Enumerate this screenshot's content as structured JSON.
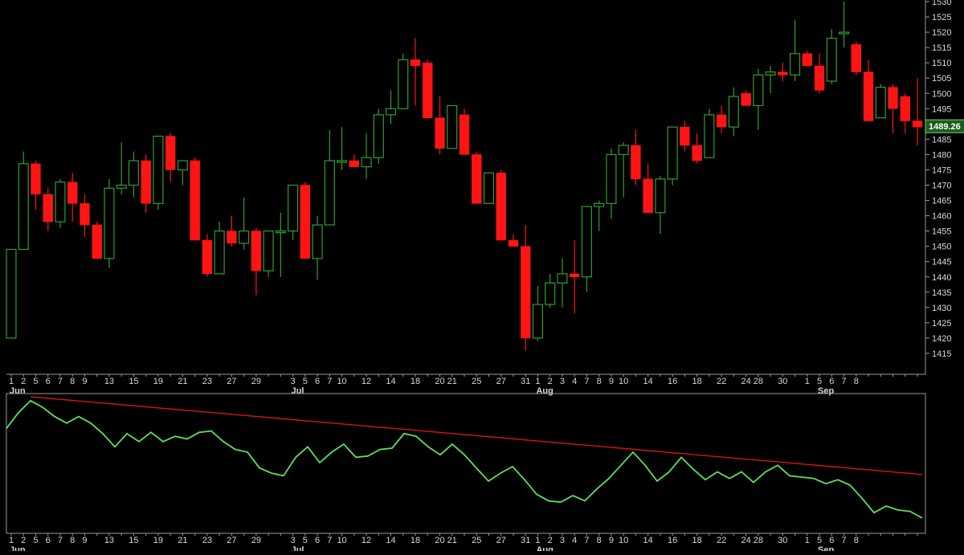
{
  "colors": {
    "background": "#000000",
    "up": "#2f9e2f",
    "down": "#ff1414",
    "frame": "#9a9a9a",
    "text": "#d8d8d8",
    "price_tag_bg": "#1e5a1e",
    "oscillator": "#5de05d",
    "trendline": "#d01818"
  },
  "chart_data": [
    {
      "type": "candlestick",
      "panel": "price",
      "grid": false,
      "ylim": [
        1410,
        1530
      ],
      "y_ticks": [
        1415,
        1420,
        1425,
        1430,
        1435,
        1440,
        1445,
        1450,
        1455,
        1460,
        1465,
        1470,
        1475,
        1480,
        1485,
        1490,
        1495,
        1500,
        1505,
        1510,
        1515,
        1520,
        1525,
        1530
      ],
      "current_price_label": "1489.26",
      "current_price": 1489.26,
      "x_tick_labels": [
        "1",
        "2",
        "5",
        "6",
        "7",
        "8",
        "9",
        "13",
        "15",
        "19",
        "21",
        "23",
        "27",
        "29",
        "3",
        "5",
        "6",
        "7",
        "10",
        "12",
        "14",
        "18",
        "20",
        "21",
        "25",
        "27",
        "31",
        "1",
        "2",
        "3",
        "4",
        "7",
        "8",
        "9",
        "10",
        "14",
        "16",
        "18",
        "22",
        "24",
        "28",
        "30",
        "1",
        "5",
        "6",
        "7",
        "8"
      ],
      "month_labels": [
        "Jun",
        "Jul",
        "Aug",
        "Sep"
      ],
      "candles": [
        {
          "o": 1420,
          "h": 1449,
          "l": 1420,
          "c": 1449
        },
        {
          "o": 1449,
          "h": 1481,
          "l": 1449,
          "c": 1477
        },
        {
          "o": 1477,
          "h": 1478,
          "l": 1462,
          "c": 1467
        },
        {
          "o": 1467,
          "h": 1469,
          "l": 1455,
          "c": 1458
        },
        {
          "o": 1458,
          "h": 1472,
          "l": 1456,
          "c": 1471
        },
        {
          "o": 1471,
          "h": 1474,
          "l": 1458,
          "c": 1464
        },
        {
          "o": 1464,
          "h": 1467,
          "l": 1453,
          "c": 1457
        },
        {
          "o": 1457,
          "h": 1458,
          "l": 1446,
          "c": 1446
        },
        {
          "o": 1446,
          "h": 1472,
          "l": 1443,
          "c": 1469
        },
        {
          "o": 1469,
          "h": 1484,
          "l": 1467,
          "c": 1470
        },
        {
          "o": 1470,
          "h": 1481,
          "l": 1466,
          "c": 1478
        },
        {
          "o": 1478,
          "h": 1480,
          "l": 1461,
          "c": 1464
        },
        {
          "o": 1464,
          "h": 1486,
          "l": 1462,
          "c": 1486
        },
        {
          "o": 1486,
          "h": 1487,
          "l": 1471,
          "c": 1475
        },
        {
          "o": 1475,
          "h": 1478,
          "l": 1470,
          "c": 1478
        },
        {
          "o": 1478,
          "h": 1479,
          "l": 1452,
          "c": 1452
        },
        {
          "o": 1452,
          "h": 1454,
          "l": 1440,
          "c": 1441
        },
        {
          "o": 1441,
          "h": 1458,
          "l": 1441,
          "c": 1455
        },
        {
          "o": 1455,
          "h": 1460,
          "l": 1450,
          "c": 1451
        },
        {
          "o": 1451,
          "h": 1466,
          "l": 1449,
          "c": 1455
        },
        {
          "o": 1455,
          "h": 1456,
          "l": 1434,
          "c": 1442
        },
        {
          "o": 1442,
          "h": 1455,
          "l": 1440,
          "c": 1455
        },
        {
          "o": 1455,
          "h": 1461,
          "l": 1440,
          "c": 1455
        },
        {
          "o": 1455,
          "h": 1470,
          "l": 1452,
          "c": 1470
        },
        {
          "o": 1470,
          "h": 1471,
          "l": 1446,
          "c": 1446
        },
        {
          "o": 1446,
          "h": 1460,
          "l": 1439,
          "c": 1457
        },
        {
          "o": 1457,
          "h": 1488,
          "l": 1457,
          "c": 1478
        },
        {
          "o": 1478,
          "h": 1489,
          "l": 1475,
          "c": 1478
        },
        {
          "o": 1478,
          "h": 1480,
          "l": 1476,
          "c": 1476
        },
        {
          "o": 1476,
          "h": 1487,
          "l": 1472,
          "c": 1479
        },
        {
          "o": 1479,
          "h": 1495,
          "l": 1477,
          "c": 1493
        },
        {
          "o": 1493,
          "h": 1501,
          "l": 1490,
          "c": 1495
        },
        {
          "o": 1495,
          "h": 1513,
          "l": 1495,
          "c": 1511
        },
        {
          "o": 1511,
          "h": 1518,
          "l": 1496,
          "c": 1509
        },
        {
          "o": 1510,
          "h": 1511,
          "l": 1492,
          "c": 1492
        },
        {
          "o": 1492,
          "h": 1499,
          "l": 1480,
          "c": 1482
        },
        {
          "o": 1482,
          "h": 1496,
          "l": 1482,
          "c": 1496
        },
        {
          "o": 1493,
          "h": 1495,
          "l": 1480,
          "c": 1480
        },
        {
          "o": 1480,
          "h": 1481,
          "l": 1464,
          "c": 1464
        },
        {
          "o": 1464,
          "h": 1474,
          "l": 1464,
          "c": 1474
        },
        {
          "o": 1474,
          "h": 1475,
          "l": 1452,
          "c": 1452
        },
        {
          "o": 1452,
          "h": 1454,
          "l": 1450,
          "c": 1450
        },
        {
          "o": 1450,
          "h": 1457,
          "l": 1416,
          "c": 1420
        },
        {
          "o": 1420,
          "h": 1437,
          "l": 1419,
          "c": 1431
        },
        {
          "o": 1431,
          "h": 1441,
          "l": 1430,
          "c": 1438
        },
        {
          "o": 1438,
          "h": 1446,
          "l": 1430,
          "c": 1441
        },
        {
          "o": 1441,
          "h": 1452,
          "l": 1428,
          "c": 1440
        },
        {
          "o": 1440,
          "h": 1463,
          "l": 1435,
          "c": 1463
        },
        {
          "o": 1463,
          "h": 1465,
          "l": 1455,
          "c": 1464
        },
        {
          "o": 1464,
          "h": 1482,
          "l": 1459,
          "c": 1480
        },
        {
          "o": 1480,
          "h": 1484,
          "l": 1466,
          "c": 1483
        },
        {
          "o": 1483,
          "h": 1488,
          "l": 1470,
          "c": 1472
        },
        {
          "o": 1472,
          "h": 1477,
          "l": 1462,
          "c": 1461
        },
        {
          "o": 1461,
          "h": 1473,
          "l": 1454,
          "c": 1472
        },
        {
          "o": 1472,
          "h": 1489,
          "l": 1470,
          "c": 1489
        },
        {
          "o": 1489,
          "h": 1491,
          "l": 1481,
          "c": 1483
        },
        {
          "o": 1483,
          "h": 1487,
          "l": 1477,
          "c": 1478
        },
        {
          "o": 1479,
          "h": 1495,
          "l": 1479,
          "c": 1493
        },
        {
          "o": 1493,
          "h": 1496,
          "l": 1487,
          "c": 1489
        },
        {
          "o": 1489,
          "h": 1502,
          "l": 1486,
          "c": 1499
        },
        {
          "o": 1500,
          "h": 1501,
          "l": 1496,
          "c": 1496
        },
        {
          "o": 1496,
          "h": 1508,
          "l": 1488,
          "c": 1506
        },
        {
          "o": 1506,
          "h": 1509,
          "l": 1500,
          "c": 1507
        },
        {
          "o": 1507,
          "h": 1510,
          "l": 1504,
          "c": 1506
        },
        {
          "o": 1506,
          "h": 1524,
          "l": 1504,
          "c": 1513
        },
        {
          "o": 1513,
          "h": 1514,
          "l": 1509,
          "c": 1509
        },
        {
          "o": 1509,
          "h": 1513,
          "l": 1500,
          "c": 1501
        },
        {
          "o": 1504,
          "h": 1521,
          "l": 1503,
          "c": 1518
        },
        {
          "o": 1520,
          "h": 1530,
          "l": 1515,
          "c": 1520
        },
        {
          "o": 1516,
          "h": 1517,
          "l": 1506,
          "c": 1507
        },
        {
          "o": 1507,
          "h": 1511,
          "l": 1491,
          "c": 1491
        },
        {
          "o": 1492,
          "h": 1503,
          "l": 1492,
          "c": 1502
        },
        {
          "o": 1502,
          "h": 1503,
          "l": 1487,
          "c": 1495
        },
        {
          "o": 1499,
          "h": 1500,
          "l": 1487,
          "c": 1491
        },
        {
          "o": 1491,
          "h": 1505,
          "l": 1483,
          "c": 1489
        }
      ]
    },
    {
      "type": "line",
      "panel": "oscillator",
      "grid": false,
      "ylim": [
        0,
        100
      ],
      "x_tick_labels": [
        "1",
        "2",
        "5",
        "6",
        "7",
        "8",
        "9",
        "13",
        "15",
        "19",
        "21",
        "23",
        "27",
        "29",
        "3",
        "5",
        "6",
        "7",
        "10",
        "12",
        "14",
        "18",
        "20",
        "21",
        "25",
        "27",
        "31",
        "1",
        "2",
        "3",
        "4",
        "7",
        "8",
        "9",
        "10",
        "14",
        "16",
        "18",
        "22",
        "24",
        "28",
        "30",
        "1",
        "5",
        "6",
        "7",
        "8"
      ],
      "month_labels": [
        "Jun",
        "Jul",
        "Aug",
        "Sep"
      ],
      "series": [
        {
          "values": [
            76,
            88,
            97,
            92,
            85,
            80,
            85,
            80,
            72,
            62,
            72,
            66,
            73,
            66,
            70,
            68,
            73,
            74,
            66,
            60,
            58,
            46,
            42,
            40,
            54,
            62,
            50,
            58,
            64,
            54,
            55,
            60,
            61,
            72,
            70,
            62,
            56,
            64,
            56,
            46,
            36,
            42,
            47,
            37,
            26,
            21,
            20,
            25,
            21,
            30,
            38,
            48,
            58,
            48,
            36,
            43,
            54,
            45,
            37,
            43,
            38,
            43,
            35,
            43,
            48,
            40,
            39,
            38,
            34,
            37,
            33,
            23,
            12,
            17,
            14,
            13,
            8
          ]
        },
        {
          "start": {
            "x": 2,
            "y": 100
          },
          "end": {
            "x": 76,
            "y": 41
          }
        }
      ]
    }
  ]
}
